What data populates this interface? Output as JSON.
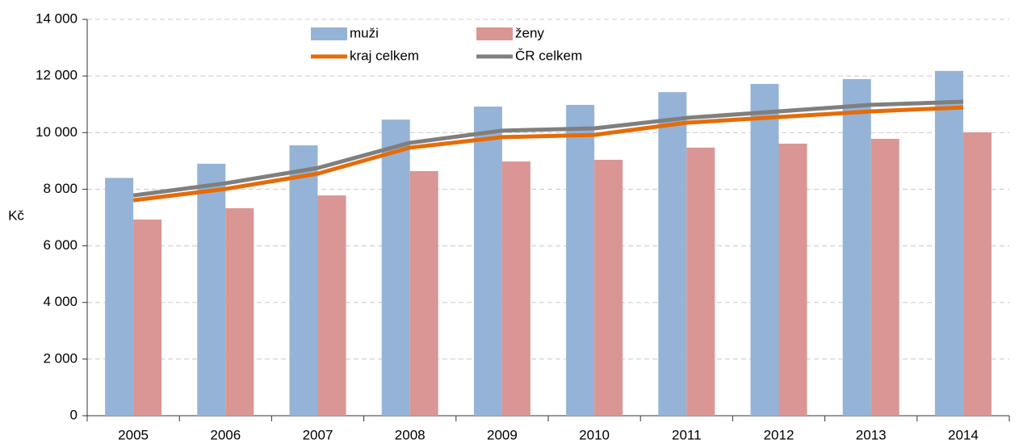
{
  "chart_data": {
    "type": "bar",
    "y_label": "Kč",
    "categories": [
      "2005",
      "2006",
      "2007",
      "2008",
      "2009",
      "2010",
      "2011",
      "2012",
      "2013",
      "2014"
    ],
    "series": [
      {
        "name": "muži",
        "type": "bar",
        "color": "#95b3d7",
        "values": [
          8400,
          8900,
          9550,
          10460,
          10920,
          10980,
          11430,
          11720,
          11890,
          12180
        ]
      },
      {
        "name": "ženy",
        "type": "bar",
        "color": "#d99694",
        "values": [
          6930,
          7330,
          7780,
          8640,
          8980,
          9040,
          9470,
          9610,
          9780,
          10010
        ]
      },
      {
        "name": "kraj celkem",
        "type": "line",
        "color": "#e46c0a",
        "values": [
          7610,
          8010,
          8550,
          9470,
          9840,
          9920,
          10350,
          10550,
          10750,
          10890
        ]
      },
      {
        "name": "ČR celkem",
        "type": "line",
        "color": "#7f7f7f",
        "values": [
          7780,
          8210,
          8750,
          9640,
          10070,
          10150,
          10520,
          10750,
          10980,
          11090
        ]
      }
    ],
    "ylim": [
      0,
      14000
    ],
    "yticks": [
      0,
      {
        "value": 2000,
        "label": "2 000"
      },
      {
        "value": 4000,
        "label": "4 000"
      },
      {
        "value": 6000,
        "label": "6 000"
      },
      {
        "value": 8000,
        "label": "8 000"
      },
      {
        "value": 10000,
        "label": "10 000"
      },
      {
        "value": 12000,
        "label": "12 000"
      },
      {
        "value": 14000,
        "label": "14 000"
      }
    ],
    "grid": true,
    "legend": "top"
  }
}
